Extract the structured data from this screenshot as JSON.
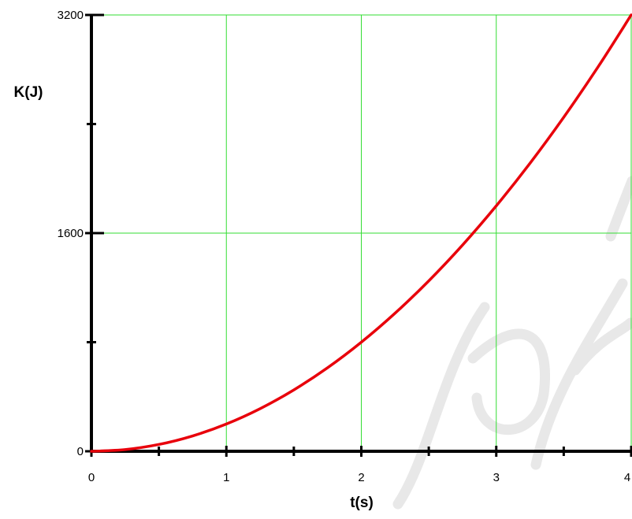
{
  "chart_data": {
    "type": "line",
    "title": "",
    "xlabel": "t(s)",
    "ylabel": "K(J)",
    "xlim": [
      0,
      4
    ],
    "ylim": [
      0,
      3200
    ],
    "x_ticks": [
      "0",
      "1",
      "2",
      "3",
      "4"
    ],
    "y_ticks": [
      "0",
      "1600",
      "3200"
    ],
    "x_minor_ticks": [
      0.5,
      1.5,
      2.5,
      3.5
    ],
    "y_minor_ticks": [
      800,
      2400
    ],
    "grid": true,
    "legend": "none",
    "colors": {
      "line": "#e8000b",
      "grid": "#33dd33",
      "axis": "#000000",
      "watermark": "#e8e8e8"
    },
    "series": [
      {
        "x": [
          0,
          0.25,
          0.5,
          0.75,
          1,
          1.25,
          1.5,
          1.75,
          2,
          2.25,
          2.5,
          2.75,
          3,
          3.25,
          3.5,
          3.75,
          4
        ],
        "values": [
          0,
          12.5,
          50,
          112.5,
          200,
          312.5,
          450,
          612.5,
          800,
          1012.5,
          1250,
          1512.5,
          1800,
          2112.5,
          2450,
          2812.5,
          3200
        ]
      }
    ]
  }
}
